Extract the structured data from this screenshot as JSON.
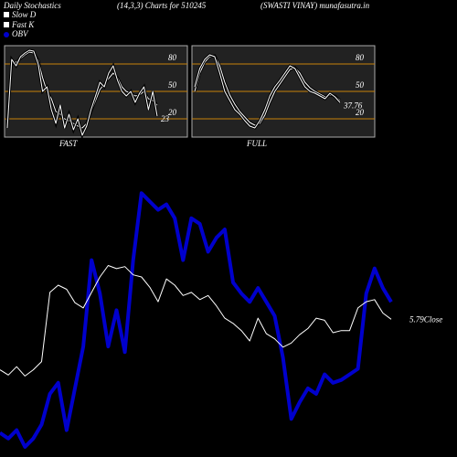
{
  "header": {
    "title": "Daily Stochastics",
    "subtitle": "(14,3,3) Charts for 510245",
    "source": "(SWASTI VINAY) munafasutra.in"
  },
  "chart_data": [
    {
      "type": "line",
      "label": "FAST",
      "ylim": [
        0,
        100
      ],
      "yticks": [
        80,
        50,
        20
      ],
      "grid_color": "#c8820a",
      "series": [
        {
          "name": "Slow D",
          "color": "#ffffff",
          "values": [
            20,
            80,
            82,
            86,
            90,
            93,
            92,
            84,
            65,
            50,
            42,
            28,
            25,
            20,
            18,
            15,
            12,
            10,
            15,
            28,
            40,
            52,
            58,
            64,
            70,
            65,
            55,
            50,
            48,
            45,
            46,
            50,
            42,
            40,
            35
          ]
        },
        {
          "name": "Fast K",
          "color": "#ffffff",
          "values": [
            10,
            85,
            78,
            88,
            92,
            95,
            94,
            80,
            50,
            55,
            30,
            15,
            35,
            10,
            25,
            8,
            20,
            2,
            12,
            30,
            45,
            60,
            55,
            70,
            78,
            62,
            50,
            45,
            50,
            38,
            48,
            55,
            30,
            50,
            23
          ]
        }
      ]
    },
    {
      "type": "line",
      "label": "FULL",
      "ylim": [
        0,
        100
      ],
      "yticks": [
        80,
        50,
        20
      ],
      "grid_color": "#c8820a",
      "series": [
        {
          "color": "#ffffff",
          "values": [
            50,
            70,
            82,
            88,
            89,
            78,
            60,
            46,
            36,
            28,
            22,
            16,
            13,
            15,
            24,
            38,
            50,
            58,
            66,
            74,
            76,
            70,
            60,
            54,
            50,
            47,
            44,
            46,
            45,
            40
          ]
        },
        {
          "color": "#ffffff",
          "values": [
            55,
            75,
            85,
            90,
            88,
            70,
            50,
            40,
            30,
            25,
            18,
            12,
            10,
            18,
            30,
            45,
            55,
            62,
            70,
            78,
            75,
            65,
            55,
            50,
            48,
            45,
            42,
            48,
            44,
            37.76
          ]
        }
      ]
    },
    {
      "type": "line",
      "ylim": [
        4.5,
        7.2
      ],
      "y2lim": [
        0,
        100
      ],
      "series": [
        {
          "name": "OBV",
          "color": "#0000cc",
          "axis": "y2",
          "values": [
            7,
            5,
            8,
            2,
            5,
            10,
            21,
            25,
            8,
            23,
            38,
            69,
            57,
            38,
            51,
            36,
            69,
            93,
            90,
            87,
            89,
            84,
            69,
            84,
            82,
            72,
            77,
            80,
            61,
            57,
            54,
            59,
            54,
            49,
            34,
            12,
            18,
            23,
            21,
            28,
            25,
            26,
            28,
            30,
            57,
            66,
            59,
            54
          ]
        },
        {
          "name": "Close",
          "color": "#ffffff",
          "values": [
            5.3,
            5.25,
            5.33,
            5.24,
            5.3,
            5.38,
            6.05,
            6.12,
            6.08,
            5.95,
            5.9,
            6.05,
            6.2,
            6.31,
            6.28,
            6.3,
            6.22,
            6.2,
            6.1,
            5.96,
            6.18,
            6.12,
            6.02,
            6.05,
            5.98,
            6.02,
            5.92,
            5.8,
            5.75,
            5.68,
            5.58,
            5.8,
            5.65,
            5.6,
            5.52,
            5.56,
            5.64,
            5.7,
            5.8,
            5.78,
            5.66,
            5.68,
            5.68,
            5.9,
            5.96,
            5.98,
            5.85,
            5.79
          ]
        }
      ]
    }
  ]
}
